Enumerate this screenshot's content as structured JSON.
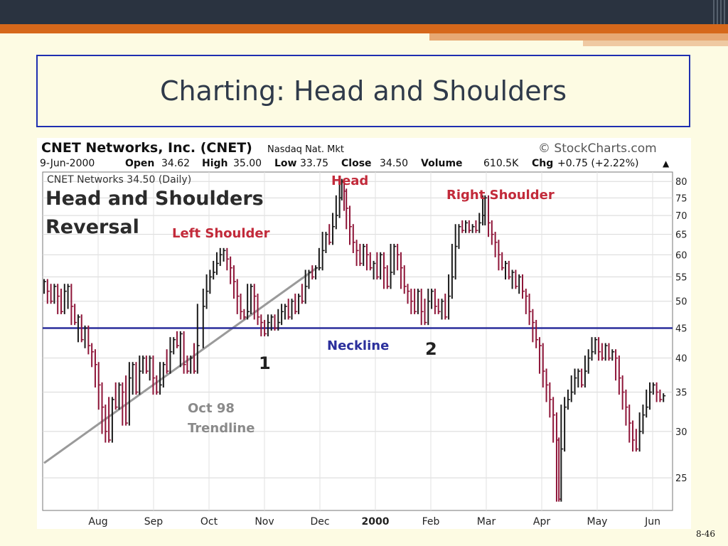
{
  "slide": {
    "title": "Charting: Head and Shoulders",
    "page_number": "8-46"
  },
  "chart_data": {
    "type": "line",
    "header": {
      "company": "CNET Networks, Inc. (CNET)",
      "exchange": "Nasdaq Nat. Mkt",
      "credit": "© StockCharts.com",
      "date": "9-Jun-2000",
      "open_label": "Open",
      "open": "34.62",
      "high_label": "High",
      "high": "35.00",
      "low_label": "Low",
      "low": "33.75",
      "close_label": "Close",
      "close": "34.50",
      "volume_label": "Volume",
      "volume": "610.5K",
      "chg_label": "Chg",
      "chg": "+0.75 (+2.22%)",
      "arrow": "▲"
    },
    "legend": "CNET Networks 34.50 (Daily)",
    "annotations": {
      "big_title_line1": "Head and Shoulders",
      "big_title_line2": "Reversal",
      "left_shoulder": "Left Shoulder",
      "head": "Head",
      "right_shoulder": "Right Shoulder",
      "neckline": "Neckline",
      "point1": "1",
      "point2": "2",
      "trendline_line1": "Oct 98",
      "trendline_line2": "Trendline"
    },
    "y_scale": "log",
    "ylim": [
      22,
      83
    ],
    "y_ticks": [
      25,
      30,
      35,
      40,
      45,
      50,
      55,
      60,
      65,
      70,
      75,
      80
    ],
    "x_ticks": [
      "Aug",
      "Sep",
      "Oct",
      "Nov",
      "Dec",
      "2000",
      "Feb",
      "Mar",
      "Apr",
      "May",
      "Jun"
    ],
    "neckline_value": 45,
    "series": [
      {
        "values": [
          [
            0,
            54
          ],
          [
            3,
            52
          ],
          [
            6,
            50
          ],
          [
            9,
            53
          ],
          [
            12,
            51
          ],
          [
            15,
            48
          ],
          [
            18,
            52
          ],
          [
            21,
            53
          ],
          [
            24,
            49
          ],
          [
            27,
            46
          ],
          [
            30,
            47
          ],
          [
            33,
            43
          ],
          [
            36,
            45
          ],
          [
            39,
            42
          ],
          [
            42,
            41
          ],
          [
            45,
            39
          ],
          [
            48,
            36
          ],
          [
            51,
            33
          ],
          [
            54,
            30
          ],
          [
            57,
            29
          ],
          [
            60,
            34
          ],
          [
            63,
            33
          ],
          [
            66,
            36
          ],
          [
            69,
            35
          ],
          [
            72,
            31
          ],
          [
            75,
            37
          ],
          [
            78,
            39
          ],
          [
            81,
            35
          ],
          [
            84,
            38
          ],
          [
            87,
            40
          ],
          [
            90,
            38
          ],
          [
            93,
            40
          ],
          [
            96,
            37
          ],
          [
            99,
            35
          ],
          [
            102,
            36
          ],
          [
            105,
            39
          ],
          [
            108,
            38
          ],
          [
            111,
            41
          ],
          [
            114,
            43
          ],
          [
            117,
            42
          ],
          [
            120,
            44
          ],
          [
            123,
            39
          ],
          [
            126,
            38
          ],
          [
            129,
            40
          ],
          [
            132,
            38
          ],
          [
            135,
            42
          ],
          [
            140,
            49
          ],
          [
            143,
            52
          ],
          [
            146,
            55
          ],
          [
            149,
            56
          ],
          [
            152,
            58
          ],
          [
            155,
            60
          ],
          [
            158,
            61
          ],
          [
            161,
            59
          ],
          [
            164,
            57
          ],
          [
            167,
            54
          ],
          [
            170,
            51
          ],
          [
            173,
            48
          ],
          [
            176,
            47
          ],
          [
            179,
            48
          ],
          [
            182,
            53
          ],
          [
            185,
            51
          ],
          [
            188,
            47
          ],
          [
            191,
            46
          ],
          [
            194,
            44
          ],
          [
            197,
            46
          ],
          [
            200,
            47
          ],
          [
            203,
            45
          ],
          [
            206,
            46
          ],
          [
            209,
            48
          ],
          [
            212,
            49
          ],
          [
            215,
            47
          ],
          [
            218,
            50
          ],
          [
            221,
            48
          ],
          [
            224,
            51
          ],
          [
            227,
            50
          ],
          [
            230,
            53
          ],
          [
            233,
            56
          ],
          [
            236,
            55
          ],
          [
            239,
            57
          ],
          [
            242,
            57
          ],
          [
            245,
            61
          ],
          [
            248,
            65
          ],
          [
            251,
            63
          ],
          [
            254,
            67
          ],
          [
            257,
            70
          ],
          [
            260,
            75
          ],
          [
            262,
            80
          ],
          [
            264,
            77
          ],
          [
            266,
            72
          ],
          [
            269,
            67
          ],
          [
            272,
            63
          ],
          [
            275,
            61
          ],
          [
            278,
            58
          ],
          [
            281,
            62
          ],
          [
            284,
            60
          ],
          [
            287,
            57
          ],
          [
            290,
            58
          ],
          [
            293,
            55
          ],
          [
            296,
            60
          ],
          [
            299,
            57
          ],
          [
            302,
            53
          ],
          [
            305,
            56
          ],
          [
            308,
            62
          ],
          [
            311,
            60
          ],
          [
            314,
            57
          ],
          [
            317,
            53
          ],
          [
            320,
            52
          ],
          [
            323,
            50
          ],
          [
            326,
            48
          ],
          [
            329,
            52
          ],
          [
            332,
            48
          ],
          [
            335,
            46
          ],
          [
            338,
            50
          ],
          [
            341,
            52
          ],
          [
            344,
            49
          ],
          [
            347,
            48
          ],
          [
            350,
            50
          ],
          [
            353,
            47
          ],
          [
            356,
            51
          ],
          [
            359,
            55
          ],
          [
            362,
            62
          ],
          [
            365,
            67
          ],
          [
            368,
            66
          ],
          [
            371,
            68
          ],
          [
            374,
            66
          ],
          [
            377,
            67
          ],
          [
            380,
            66
          ],
          [
            383,
            68
          ],
          [
            386,
            70
          ],
          [
            388,
            75
          ],
          [
            391,
            68
          ],
          [
            394,
            65
          ],
          [
            397,
            63
          ],
          [
            400,
            60
          ],
          [
            403,
            57
          ],
          [
            406,
            58
          ],
          [
            409,
            55
          ],
          [
            412,
            56
          ],
          [
            415,
            53
          ],
          [
            418,
            55
          ],
          [
            421,
            52
          ],
          [
            424,
            51
          ],
          [
            427,
            48
          ],
          [
            430,
            46
          ],
          [
            433,
            43
          ],
          [
            436,
            42
          ],
          [
            439,
            38
          ],
          [
            442,
            36
          ],
          [
            445,
            34
          ],
          [
            448,
            32
          ],
          [
            451,
            29
          ],
          [
            453,
            23
          ],
          [
            455,
            28
          ],
          [
            458,
            33
          ],
          [
            461,
            34
          ],
          [
            464,
            35
          ],
          [
            467,
            37
          ],
          [
            470,
            38
          ],
          [
            473,
            36
          ],
          [
            476,
            38
          ],
          [
            479,
            40
          ],
          [
            482,
            41
          ],
          [
            485,
            43
          ],
          [
            488,
            41
          ],
          [
            491,
            40
          ],
          [
            494,
            42
          ],
          [
            497,
            40
          ],
          [
            500,
            41
          ],
          [
            503,
            40
          ],
          [
            506,
            37
          ],
          [
            509,
            35
          ],
          [
            512,
            33
          ],
          [
            515,
            31
          ],
          [
            518,
            29
          ],
          [
            521,
            28
          ],
          [
            524,
            30
          ],
          [
            527,
            32
          ],
          [
            530,
            33
          ],
          [
            533,
            35
          ],
          [
            536,
            36
          ],
          [
            539,
            35
          ],
          [
            542,
            34
          ],
          [
            545,
            34.5
          ]
        ]
      }
    ],
    "trendline": [
      [
        0,
        26.5
      ],
      [
        240,
        57
      ]
    ]
  }
}
